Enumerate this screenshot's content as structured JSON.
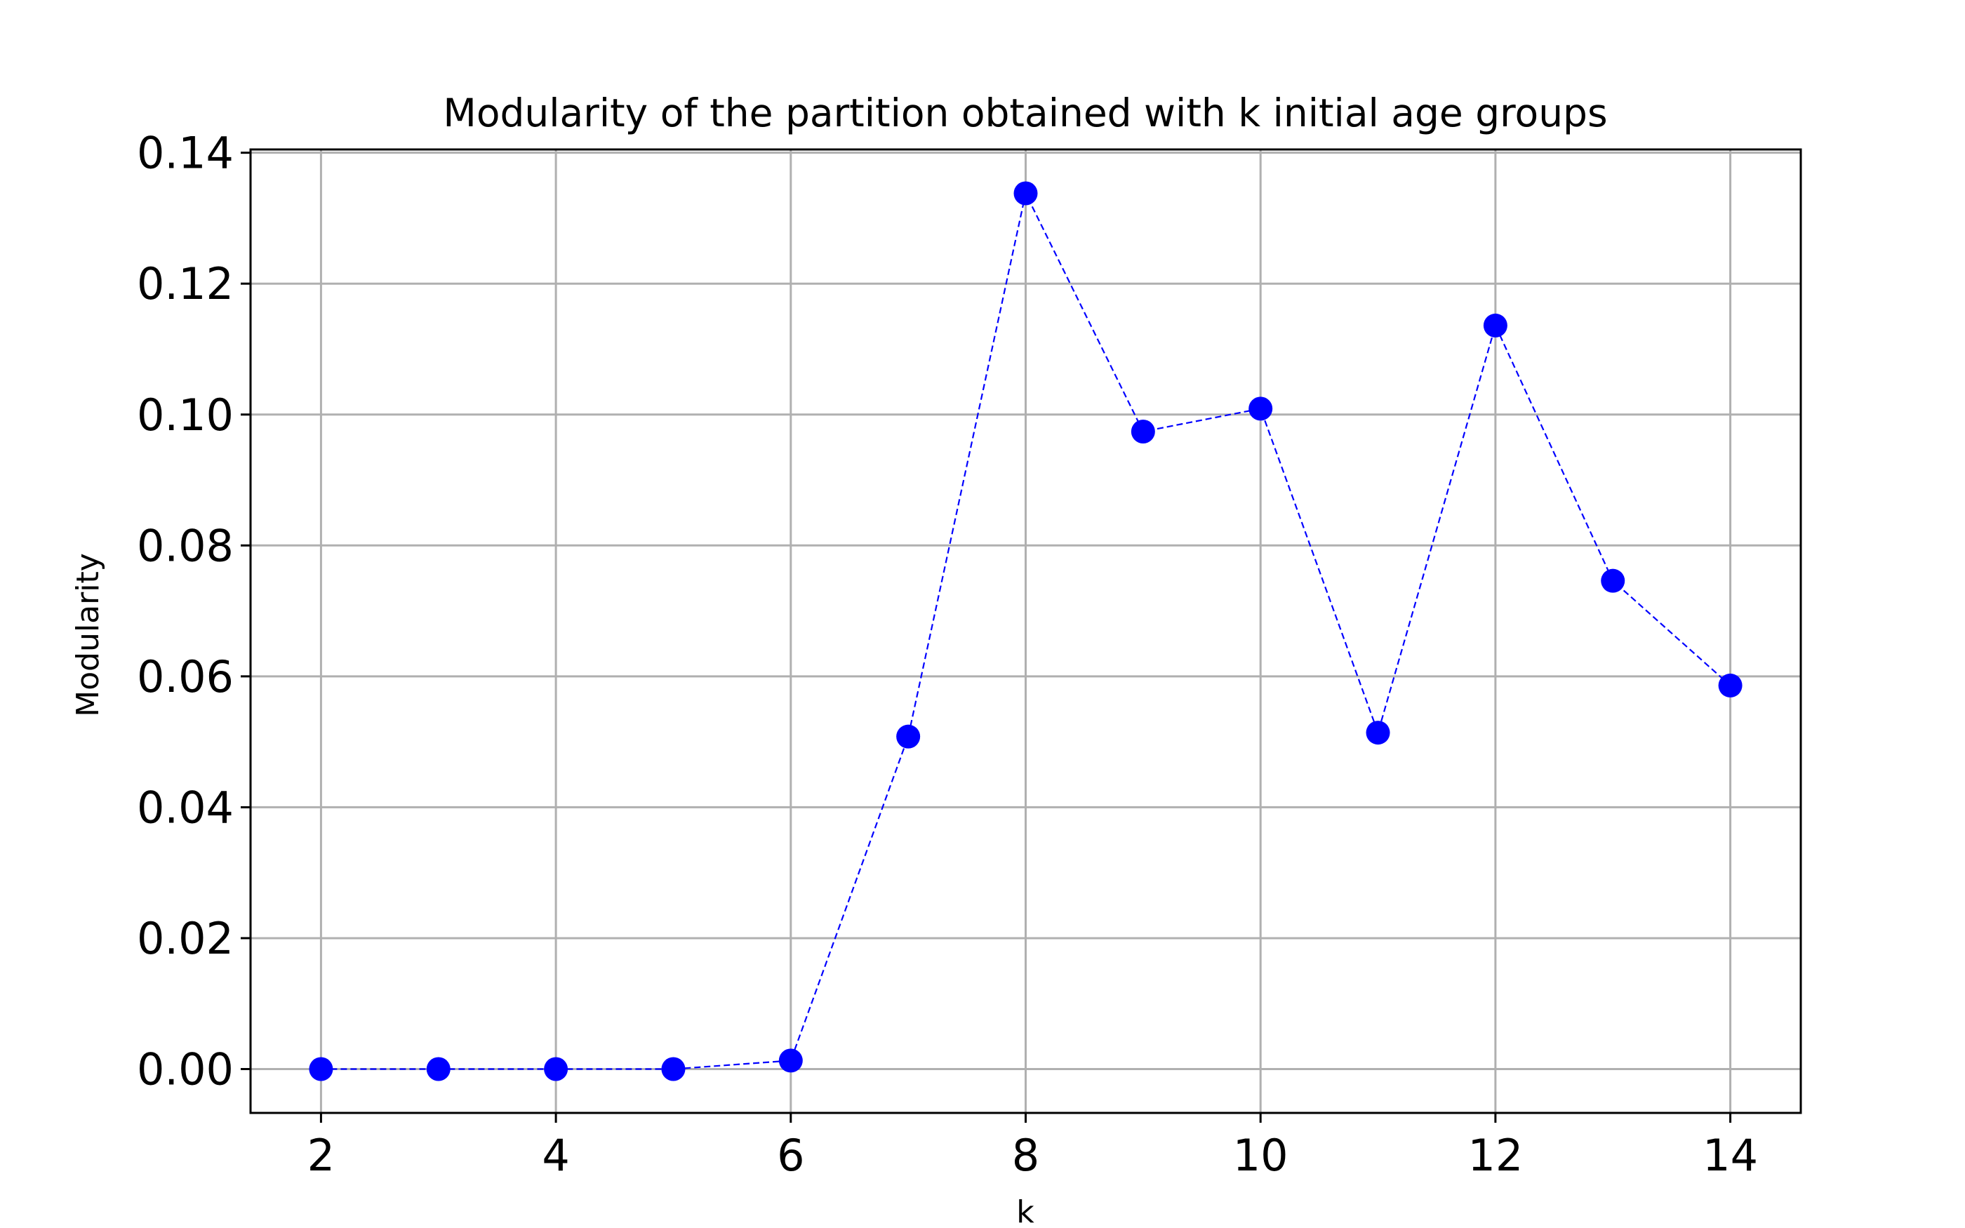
{
  "chart_data": {
    "type": "line",
    "title": "Modularity of the partition obtained with k initial age groups",
    "xlabel": "k",
    "ylabel": "Modularity",
    "x": [
      2,
      3,
      4,
      5,
      6,
      7,
      8,
      9,
      10,
      11,
      12,
      13,
      14
    ],
    "series": [
      {
        "values": [
          0.0,
          0.0,
          0.0,
          0.0,
          0.0013,
          0.0508,
          0.1338,
          0.0974,
          0.1009,
          0.0514,
          0.1136,
          0.0746,
          0.0586
        ],
        "color": "#0000ff",
        "line_style": "dashed",
        "marker": "circle"
      }
    ],
    "xlim": [
      1.4,
      14.6
    ],
    "ylim": [
      -0.0067,
      0.1405
    ],
    "xticks": [
      2,
      4,
      6,
      8,
      10,
      12,
      14
    ],
    "xtick_labels": [
      "2",
      "4",
      "6",
      "8",
      "10",
      "12",
      "14"
    ],
    "yticks": [
      0.0,
      0.02,
      0.04,
      0.06,
      0.08,
      0.1,
      0.12,
      0.14
    ],
    "ytick_labels": [
      "0.00",
      "0.02",
      "0.04",
      "0.06",
      "0.08",
      "0.10",
      "0.12",
      "0.14"
    ],
    "grid": true,
    "grid_color": "#b0b0b0",
    "legend": "none"
  }
}
